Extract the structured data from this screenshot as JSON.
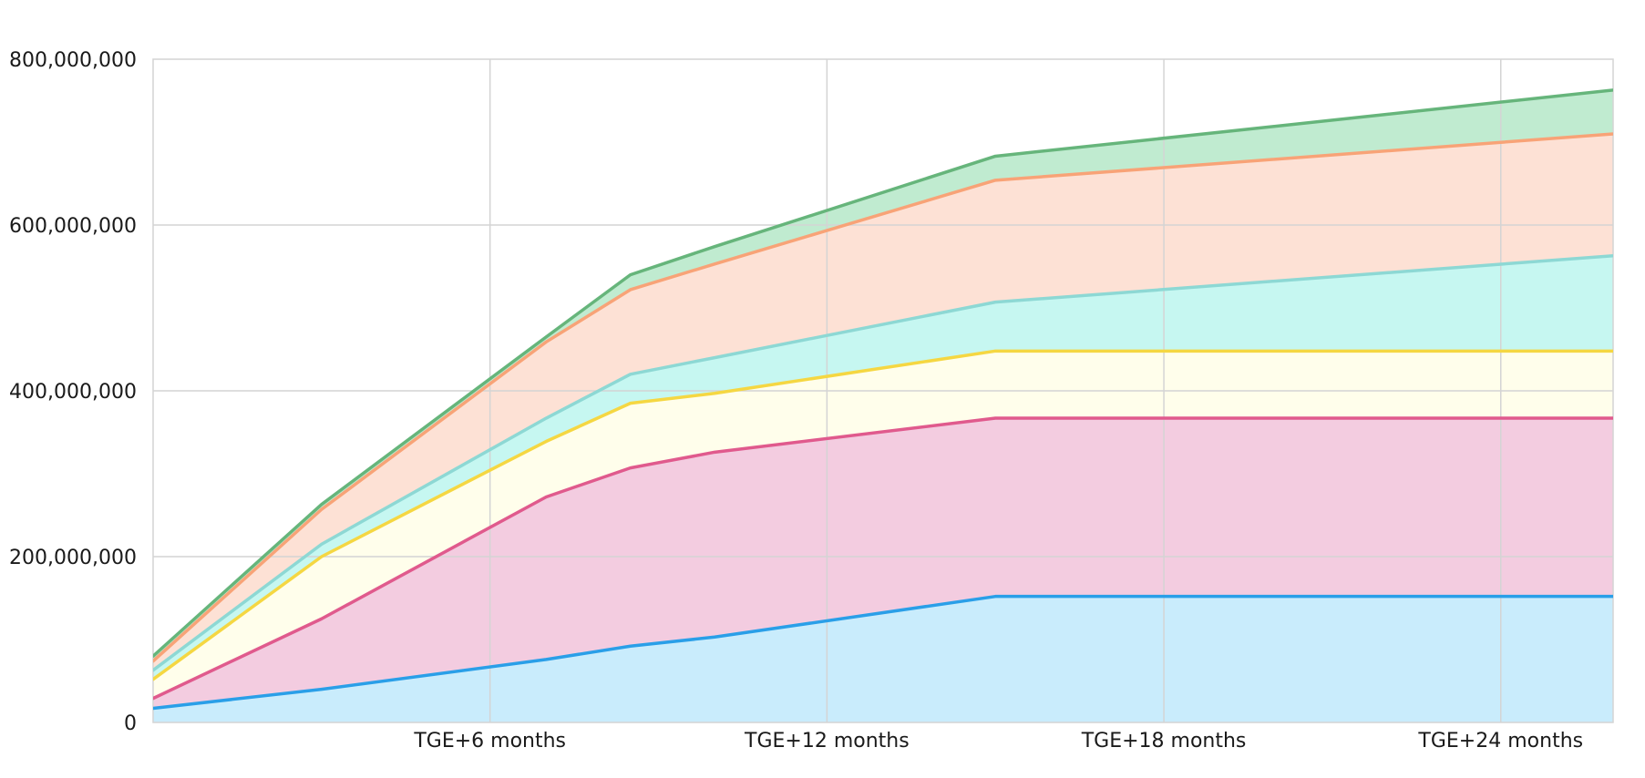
{
  "chart_data": {
    "type": "area",
    "stacked": true,
    "title": "",
    "xlabel": "",
    "ylabel": "",
    "x_unit": "months after TGE",
    "x": [
      0,
      3,
      7,
      8.5,
      10,
      15,
      27
    ],
    "xlim": [
      0,
      26
    ],
    "x_ticks": [
      {
        "value": 6,
        "label": "TGE+6 months"
      },
      {
        "value": 12,
        "label": "TGE+12 months"
      },
      {
        "value": 18,
        "label": "TGE+18 months"
      },
      {
        "value": 24,
        "label": "TGE+24 months"
      }
    ],
    "ylim": [
      0,
      800000000
    ],
    "y_ticks": [
      {
        "value": 0,
        "label": "0"
      },
      {
        "value": 200000000,
        "label": "200,000,000"
      },
      {
        "value": 400000000,
        "label": "400,000,000"
      },
      {
        "value": 600000000,
        "label": "600,000,000"
      },
      {
        "value": 800000000,
        "label": "800,000,000"
      }
    ],
    "grid": true,
    "legend": "none",
    "series": [
      {
        "color": "#2a9fe8",
        "fill": "#c9ecfc",
        "cumulative": [
          17000000,
          40000000,
          76000000,
          92000000,
          103000000,
          152000000,
          152000000
        ]
      },
      {
        "color": "#e05a8d",
        "fill": "#f3cce0",
        "cumulative": [
          29000000,
          125000000,
          272000000,
          307000000,
          326000000,
          367000000,
          367000000
        ]
      },
      {
        "color": "#f5d742",
        "fill": "#fffeeb",
        "cumulative": [
          52000000,
          200000000,
          339000000,
          385000000,
          397000000,
          448000000,
          448000000
        ]
      },
      {
        "color": "#8dd8d4",
        "fill": "#c6f7f1",
        "cumulative": [
          63000000,
          215000000,
          367000000,
          420000000,
          440000000,
          507000000,
          568000000
        ]
      },
      {
        "color": "#f8a377",
        "fill": "#fde1d5",
        "cumulative": [
          74000000,
          257000000,
          459000000,
          522000000,
          553000000,
          654000000,
          715000000
        ]
      },
      {
        "color": "#66b57b",
        "fill": "#c0ebd0",
        "cumulative": [
          80000000,
          263000000,
          465000000,
          540000000,
          574000000,
          683000000,
          770000000
        ]
      }
    ]
  }
}
